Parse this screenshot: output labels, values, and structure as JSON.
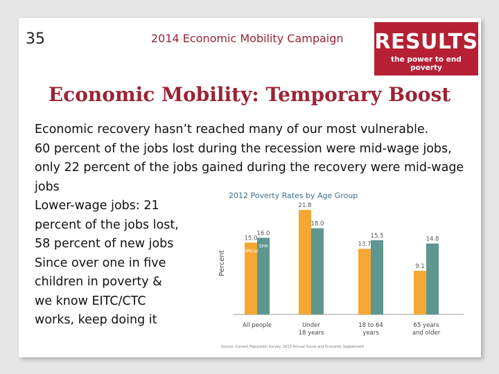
{
  "slide": {
    "number": "35",
    "campaign": "2014 Economic Mobility Campaign",
    "logo_word": "RESULTS",
    "logo_tagline": "the power to end poverty",
    "title": "Economic Mobility: Temporary Boost"
  },
  "body": {
    "line1": "Economic recovery hasn’t reached many of our most vulnerable.",
    "line2": "60 percent of the jobs lost during the recession were mid-wage jobs, only 22 percent of the jobs gained during the recovery were mid-wage jobs",
    "line3": "Lower-wage jobs: 21 percent of the jobs lost, 58 percent of new jobs",
    "line4": "Since over one in five children in poverty & we know EITC/CTC works, keep doing it"
  },
  "colors": {
    "accent": "#9b2335",
    "logo_bg": "#b52034",
    "official": "#f5a733",
    "spm": "#5e9690"
  },
  "chart_data": {
    "type": "bar",
    "title": "2012 Poverty Rates by Age Group",
    "ylabel": "Percent",
    "ylim": [
      0,
      24
    ],
    "categories": [
      [
        "All people"
      ],
      [
        "Under",
        "18 years"
      ],
      [
        "18 to 64",
        "years"
      ],
      [
        "65 years",
        "and older"
      ]
    ],
    "series": [
      {
        "name": "Official",
        "values": [
          15.0,
          21.8,
          13.7,
          9.1
        ]
      },
      {
        "name": "SPM",
        "values": [
          16.0,
          18.0,
          15.5,
          14.8
        ]
      }
    ],
    "value_labels": [
      [
        "15.0",
        "21.8",
        "13.7",
        "9.1"
      ],
      [
        "16.0",
        "18.0",
        "15.5",
        "14.8"
      ]
    ],
    "source": "Source: Current Population Survey, 2013 Annual Social and Economic Supplement."
  }
}
